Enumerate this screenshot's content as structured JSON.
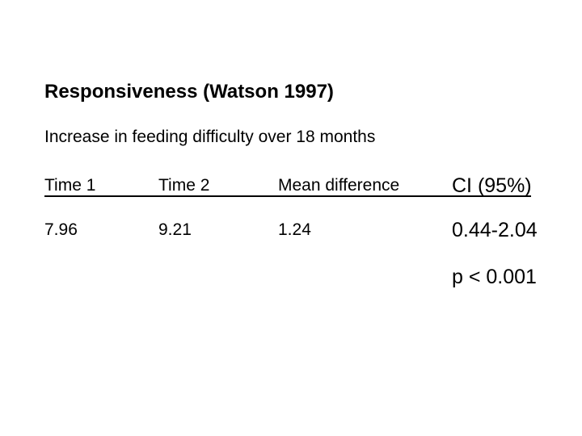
{
  "slide": {
    "background_color": "#ffffff",
    "text_color": "#000000",
    "title": "Responsiveness (Watson 1997)",
    "subtitle": "Increase in feeding difficulty over 18 months",
    "table": {
      "headers": [
        "Time 1",
        "Time 2",
        "Mean difference",
        "CI (95%)"
      ],
      "values": [
        "7.96",
        "9.21",
        "1.24",
        "0.44-2.04"
      ],
      "p_value": "p < 0.001"
    }
  }
}
